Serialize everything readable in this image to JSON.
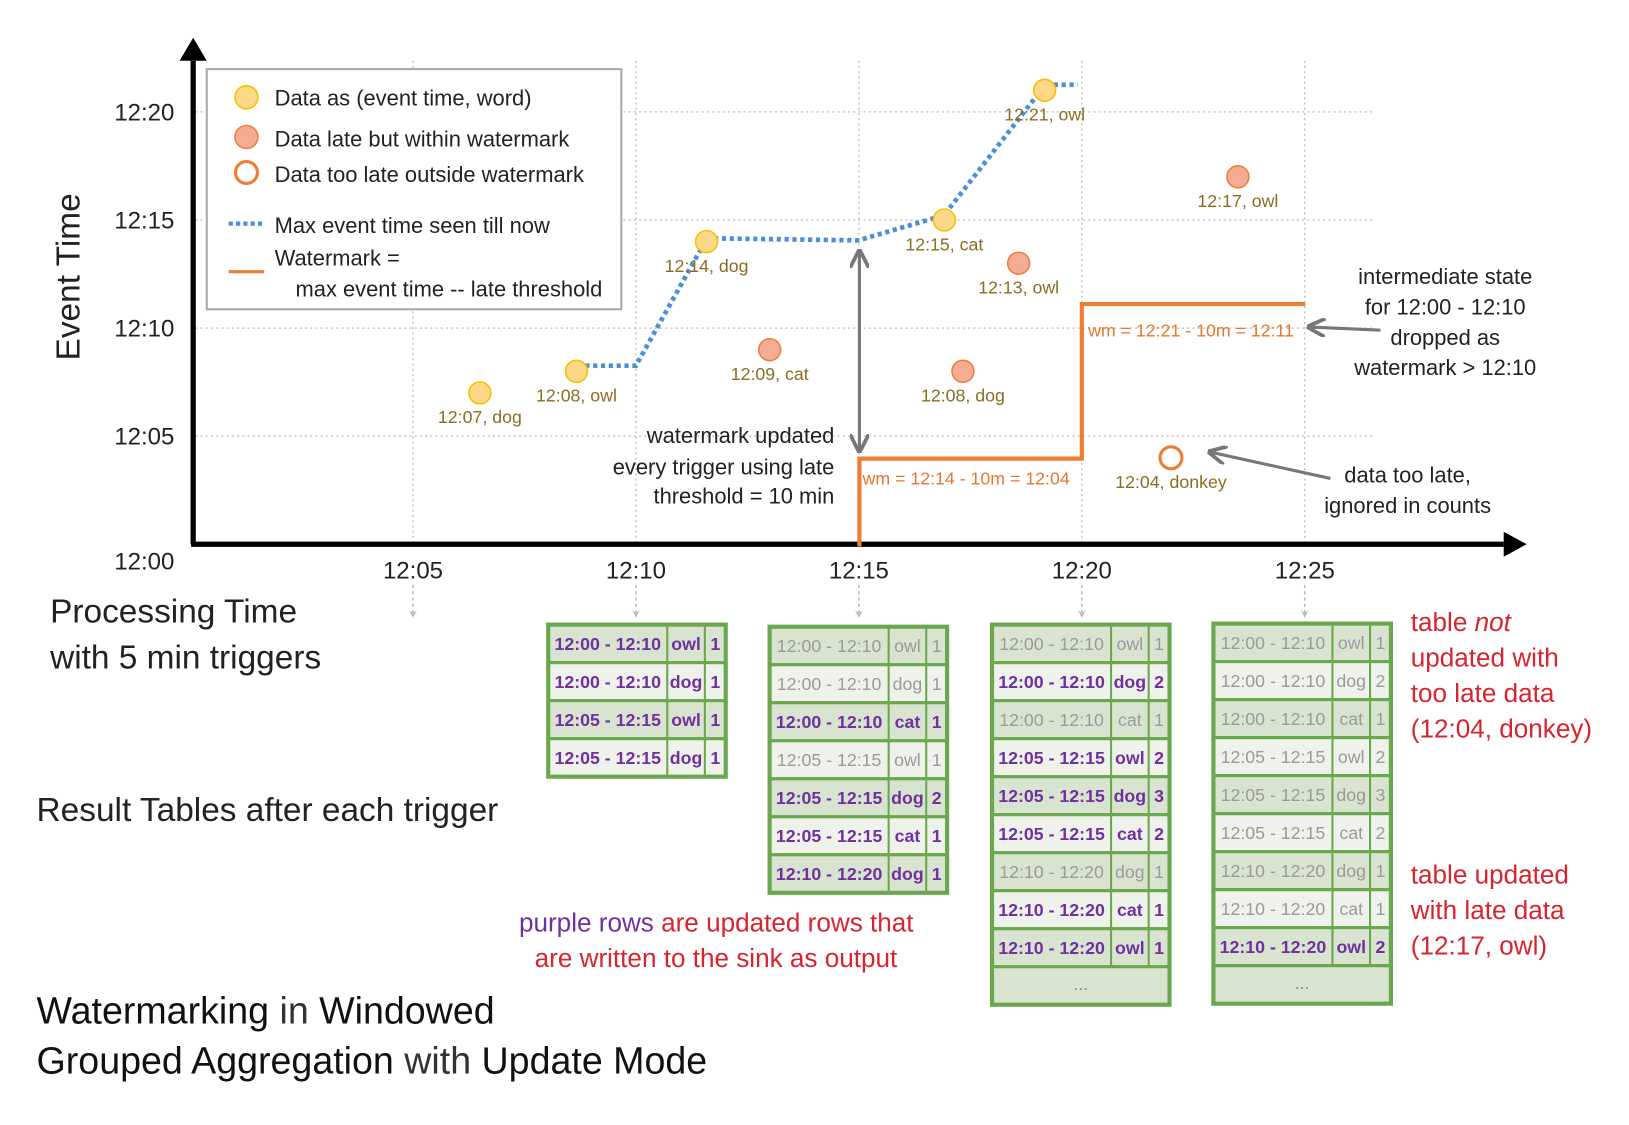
{
  "colors": {
    "on_time": "#fdd888",
    "on_time_stroke": "#f5c000",
    "late": "#f3ad93",
    "late_stroke": "#ee7d40",
    "too_late_stroke": "#ee7d31",
    "max_line": "#4a90d9",
    "watermark": "#ed7d31",
    "label": "#8a6d1f",
    "updated_row_text": "#7030a0",
    "stale_row_text": "#9a9a9a",
    "table_border": "#6aa84f",
    "row_dark": "#d9e4d0",
    "row_light": "#eef2ea",
    "note_red": "#d9232e"
  },
  "axes": {
    "y_label": "Event Time",
    "x_label_line1": "Processing Time",
    "x_label_line2": "with 5 min triggers",
    "y_ticks": [
      "12:00",
      "12:05",
      "12:10",
      "12:15",
      "12:20"
    ],
    "x_ticks": [
      "12:05",
      "12:10",
      "12:15",
      "12:20",
      "12:25"
    ]
  },
  "legend": {
    "on_time": "Data as (event time, word)",
    "late": "Data late but within watermark",
    "too_late": "Data too late outside watermark",
    "max_line": "Max event time seen till now",
    "watermark_line1": "Watermark =",
    "watermark_line2": "max event time -- late threshold"
  },
  "points": [
    {
      "processing_time": "12:06:30",
      "event_time": "12:07",
      "label": "12:07, dog",
      "kind": "on_time"
    },
    {
      "processing_time": "12:08:40",
      "event_time": "12:08",
      "label": "12:08, owl",
      "kind": "on_time"
    },
    {
      "processing_time": "12:11:35",
      "event_time": "12:14",
      "label": "12:14, dog",
      "kind": "on_time"
    },
    {
      "processing_time": "12:13:00",
      "event_time": "12:09",
      "label": "12:09, cat",
      "kind": "late"
    },
    {
      "processing_time": "12:16:55",
      "event_time": "12:15",
      "label": "12:15, cat",
      "kind": "on_time"
    },
    {
      "processing_time": "12:17:20",
      "event_time": "12:08",
      "label": "12:08, dog",
      "kind": "late"
    },
    {
      "processing_time": "12:18:35",
      "event_time": "12:13",
      "label": "12:13, owl",
      "kind": "late"
    },
    {
      "processing_time": "12:19:10",
      "event_time": "12:21",
      "label": "12:21, owl",
      "kind": "on_time"
    },
    {
      "processing_time": "12:22:00",
      "event_time": "12:04",
      "label": "12:04, donkey",
      "kind": "too_late"
    },
    {
      "processing_time": "12:23:30",
      "event_time": "12:17",
      "label": "12:17, owl",
      "kind": "late"
    }
  ],
  "watermark_labels": {
    "first": "wm = 12:14 - 10m = 12:04",
    "second": "wm = 12:21 - 10m = 12:11"
  },
  "annotations": {
    "wm_updated": [
      "watermark updated",
      "every trigger using late",
      "threshold = 10 min"
    ],
    "state_dropped": [
      "intermediate state",
      "for 12:00 - 12:10",
      "dropped as",
      "watermark > 12:10"
    ],
    "too_late": [
      "data too late,",
      "ignored in counts"
    ],
    "result_tables": "Result Tables after each trigger",
    "purple_note_purple": "purple rows",
    "purple_note_rest": " are updated rows that",
    "purple_note_line2": "are written to the sink as output",
    "not_updated": [
      "table ",
      "not",
      "updated with",
      "too late data",
      "(12:04, donkey)"
    ],
    "updated_late": [
      "table updated",
      "with late data",
      "(12:17, owl)"
    ]
  },
  "title": {
    "w1": "Watermarking",
    "w2": " in ",
    "w3": "Windowed",
    "w4": "Grouped Aggregation",
    "w5": " with ",
    "w6": "Update Mode"
  },
  "tables": [
    {
      "trigger": "12:10",
      "rows": [
        {
          "window": "12:00 - 12:10",
          "word": "owl",
          "count": "1",
          "updated": true
        },
        {
          "window": "12:00 - 12:10",
          "word": "dog",
          "count": "1",
          "updated": true
        },
        {
          "window": "12:05 - 12:15",
          "word": "owl",
          "count": "1",
          "updated": true
        },
        {
          "window": "12:05 - 12:15",
          "word": "dog",
          "count": "1",
          "updated": true
        }
      ]
    },
    {
      "trigger": "12:15",
      "rows": [
        {
          "window": "12:00 - 12:10",
          "word": "owl",
          "count": "1",
          "updated": false
        },
        {
          "window": "12:00 - 12:10",
          "word": "dog",
          "count": "1",
          "updated": false
        },
        {
          "window": "12:00 - 12:10",
          "word": "cat",
          "count": "1",
          "updated": true
        },
        {
          "window": "12:05 - 12:15",
          "word": "owl",
          "count": "1",
          "updated": false
        },
        {
          "window": "12:05 - 12:15",
          "word": "dog",
          "count": "2",
          "updated": true
        },
        {
          "window": "12:05 - 12:15",
          "word": "cat",
          "count": "1",
          "updated": true
        },
        {
          "window": "12:10 - 12:20",
          "word": "dog",
          "count": "1",
          "updated": true
        }
      ]
    },
    {
      "trigger": "12:20",
      "rows": [
        {
          "window": "12:00 - 12:10",
          "word": "owl",
          "count": "1",
          "updated": false
        },
        {
          "window": "12:00 - 12:10",
          "word": "dog",
          "count": "2",
          "updated": true
        },
        {
          "window": "12:00 - 12:10",
          "word": "cat",
          "count": "1",
          "updated": false
        },
        {
          "window": "12:05 - 12:15",
          "word": "owl",
          "count": "2",
          "updated": true
        },
        {
          "window": "12:05 - 12:15",
          "word": "dog",
          "count": "3",
          "updated": true
        },
        {
          "window": "12:05 - 12:15",
          "word": "cat",
          "count": "2",
          "updated": true
        },
        {
          "window": "12:10 - 12:20",
          "word": "dog",
          "count": "1",
          "updated": false
        },
        {
          "window": "12:10 - 12:20",
          "word": "cat",
          "count": "1",
          "updated": true
        },
        {
          "window": "12:10 - 12:20",
          "word": "owl",
          "count": "1",
          "updated": true
        }
      ],
      "more": "..."
    },
    {
      "trigger": "12:25",
      "rows": [
        {
          "window": "12:00 - 12:10",
          "word": "owl",
          "count": "1",
          "updated": false
        },
        {
          "window": "12:00 - 12:10",
          "word": "dog",
          "count": "2",
          "updated": false
        },
        {
          "window": "12:00 - 12:10",
          "word": "cat",
          "count": "1",
          "updated": false
        },
        {
          "window": "12:05 - 12:15",
          "word": "owl",
          "count": "2",
          "updated": false
        },
        {
          "window": "12:05 - 12:15",
          "word": "dog",
          "count": "3",
          "updated": false
        },
        {
          "window": "12:05 - 12:15",
          "word": "cat",
          "count": "2",
          "updated": false
        },
        {
          "window": "12:10 - 12:20",
          "word": "dog",
          "count": "1",
          "updated": false
        },
        {
          "window": "12:10 - 12:20",
          "word": "cat",
          "count": "1",
          "updated": false
        },
        {
          "window": "12:10 - 12:20",
          "word": "owl",
          "count": "2",
          "updated": true
        }
      ],
      "more": "..."
    }
  ]
}
